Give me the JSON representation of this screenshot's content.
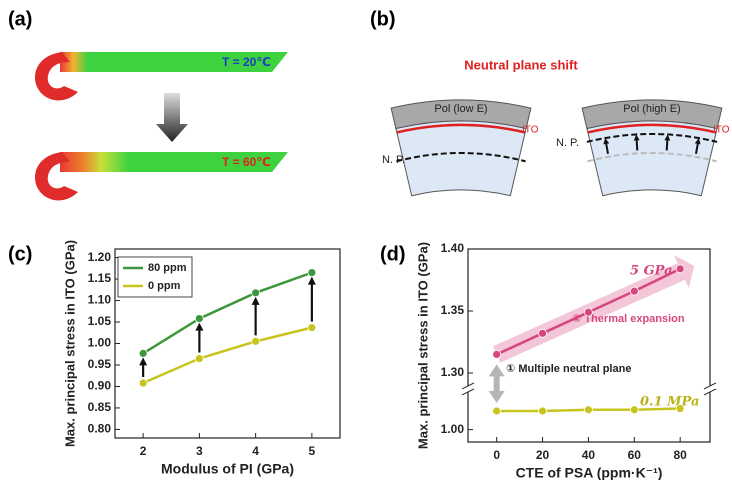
{
  "panels": {
    "labels": [
      "(a)",
      "(b)",
      "(c)",
      "(d)"
    ],
    "a": {
      "temperatures": [
        "T = 20℃",
        "T = 60℃"
      ]
    },
    "b": {
      "title": "Neutral plane shift",
      "left_layer": "Pol (low E)",
      "right_layer": "Pol (high E)",
      "ito": [
        "ITO",
        "ITO"
      ],
      "np": [
        "N. P.",
        "N. P."
      ]
    }
  },
  "chart_data": [
    {
      "type": "line",
      "xlabel": "Modulus of PI (GPa)",
      "ylabel": "Max. principal stress in ITO (GPa)",
      "x": [
        2,
        3,
        4,
        5
      ],
      "xlim": [
        1.5,
        5.5
      ],
      "xticks": [
        2,
        3,
        4,
        5
      ],
      "ylim": [
        0.78,
        1.22
      ],
      "yticks": [
        {
          "value": 0.8,
          "label": "0.80"
        },
        {
          "value": 0.85,
          "label": "0.85"
        },
        {
          "value": 0.9,
          "label": "0.90"
        },
        {
          "value": 0.95,
          "label": "0.95"
        },
        {
          "value": 1.0,
          "label": "1.00"
        },
        {
          "value": 1.05,
          "label": "1.05"
        },
        {
          "value": 1.1,
          "label": "1.10"
        },
        {
          "value": 1.15,
          "label": "1.15"
        },
        {
          "value": 1.2,
          "label": "1.20"
        }
      ],
      "legend": "upper left",
      "series": [
        {
          "name": "80 ppm",
          "color": "#3c963c",
          "values": [
            0.977,
            1.058,
            1.118,
            1.165
          ]
        },
        {
          "name": "0 ppm",
          "color": "#c8c41e",
          "values": [
            0.908,
            0.965,
            1.005,
            1.037
          ]
        }
      ]
    },
    {
      "type": "line",
      "xlabel": "CTE of PSA (ppm·K⁻¹)",
      "ylabel": "Max. principal stress in ITO (GPa)",
      "x": [
        0,
        20,
        40,
        60,
        80
      ],
      "xlim": [
        -12.5,
        93
      ],
      "xticks": [
        0,
        20,
        40,
        60,
        80
      ],
      "ylim": [
        0.99,
        1.4
      ],
      "ybreak": [
        1.03,
        1.29
      ],
      "yticks": [
        {
          "value": 1.0,
          "label": "1.00"
        },
        {
          "value": 1.3,
          "label": "1.30"
        },
        {
          "value": 1.35,
          "label": "1.35"
        },
        {
          "value": 1.4,
          "label": "1.40"
        }
      ],
      "annotations": [
        "② Thermal expansion",
        "① Multiple neutral plane"
      ],
      "series": [
        {
          "name": "5 GPa",
          "color": "#d6457f",
          "values": [
            1.315,
            1.332,
            1.349,
            1.366,
            1.384
          ]
        },
        {
          "name": "0.1 MPa",
          "color": "#c8c41e",
          "values": [
            1.015,
            1.015,
            1.016,
            1.016,
            1.017
          ]
        }
      ]
    }
  ]
}
